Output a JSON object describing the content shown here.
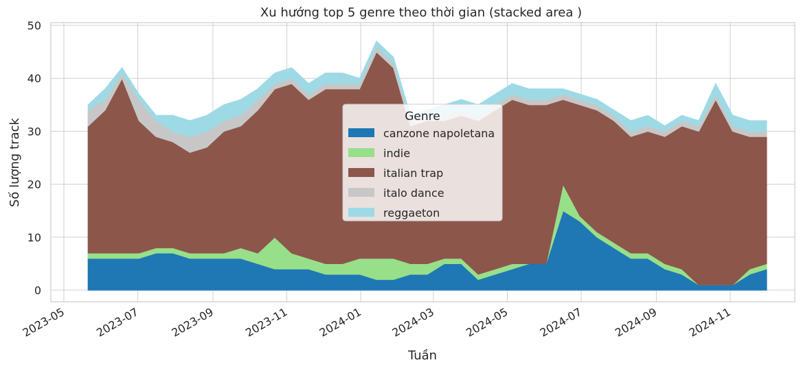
{
  "chart_data": {
    "type": "area",
    "stacked": true,
    "title": "Xu hướng top 5 genre theo thời gian (stacked area )",
    "xlabel": "Tuần",
    "ylabel": "Số lượng track",
    "ylim": [
      0,
      50
    ],
    "yticks": [
      0,
      10,
      20,
      30,
      40,
      50
    ],
    "xlim": [
      "2023-05-01",
      "2024-12-10"
    ],
    "xticks": [
      "2023-05",
      "2023-07",
      "2023-09",
      "2023-11",
      "2024-01",
      "2024-03",
      "2024-05",
      "2024-07",
      "2024-09",
      "2024-11"
    ],
    "grid": true,
    "legend": {
      "title": "Genre",
      "position": "center"
    },
    "x": [
      "2023-05-21",
      "2023-06-04",
      "2023-06-18",
      "2023-07-02",
      "2023-07-16",
      "2023-07-30",
      "2023-08-13",
      "2023-08-27",
      "2023-09-10",
      "2023-09-24",
      "2023-10-08",
      "2023-10-22",
      "2023-11-05",
      "2023-11-19",
      "2023-12-03",
      "2023-12-17",
      "2023-12-31",
      "2024-01-14",
      "2024-01-28",
      "2024-02-11",
      "2024-02-25",
      "2024-03-10",
      "2024-03-24",
      "2024-04-07",
      "2024-04-21",
      "2024-05-05",
      "2024-05-19",
      "2024-06-02",
      "2024-06-16",
      "2024-06-30",
      "2024-07-14",
      "2024-07-28",
      "2024-08-11",
      "2024-08-25",
      "2024-09-08",
      "2024-09-22",
      "2024-10-06",
      "2024-10-20",
      "2024-11-03",
      "2024-11-17",
      "2024-12-01"
    ],
    "series": [
      {
        "name": "canzone napoletana",
        "color": "#1f77b4",
        "values": [
          6,
          6,
          6,
          6,
          7,
          7,
          6,
          6,
          6,
          6,
          5,
          4,
          4,
          4,
          3,
          3,
          3,
          2,
          2,
          3,
          3,
          5,
          5,
          2,
          3,
          4,
          5,
          5,
          15,
          13,
          10,
          8,
          6,
          6,
          4,
          3,
          1,
          1,
          1,
          3,
          4
        ]
      },
      {
        "name": "indie",
        "color": "#98df8a",
        "values": [
          1,
          1,
          1,
          1,
          1,
          1,
          1,
          1,
          1,
          2,
          2,
          6,
          3,
          2,
          2,
          2,
          3,
          4,
          4,
          2,
          2,
          1,
          1,
          1,
          1,
          1,
          0,
          0,
          5,
          1,
          1,
          1,
          1,
          1,
          1,
          1,
          0,
          0,
          0,
          1,
          1
        ]
      },
      {
        "name": "italian trap",
        "color": "#8c564b",
        "values": [
          24,
          27,
          33,
          25,
          21,
          20,
          19,
          20,
          23,
          23,
          27,
          28,
          32,
          30,
          33,
          33,
          32,
          39,
          36,
          26,
          27,
          26,
          27,
          29,
          30,
          31,
          30,
          30,
          16,
          21,
          23,
          23,
          22,
          23,
          24,
          27,
          29,
          35,
          29,
          25,
          24
        ]
      },
      {
        "name": "italo dance",
        "color": "#c7c7c7",
        "values": [
          3,
          2,
          1,
          4,
          3,
          2,
          3,
          3,
          2,
          2,
          2,
          1,
          1,
          1,
          1,
          1,
          1,
          1,
          1,
          1,
          1,
          1,
          1,
          1,
          1,
          1,
          1,
          1,
          1,
          1,
          1,
          1,
          1,
          1,
          1,
          1,
          1,
          1,
          1,
          1,
          1
        ]
      },
      {
        "name": "reggaeton",
        "color": "#9edae5",
        "values": [
          1,
          2,
          1,
          1,
          1,
          3,
          3,
          3,
          3,
          3,
          2,
          2,
          2,
          2,
          2,
          2,
          1,
          1,
          1,
          1,
          1,
          2,
          2,
          2,
          2,
          2,
          2,
          2,
          1,
          1,
          1,
          1,
          2,
          2,
          1,
          1,
          1,
          2,
          2,
          2,
          2
        ]
      }
    ]
  }
}
